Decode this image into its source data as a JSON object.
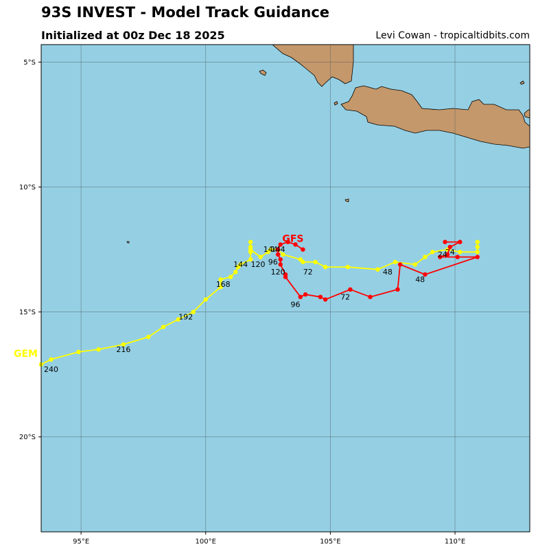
{
  "header": {
    "title": "93S INVEST - Model Track Guidance",
    "subtitle": "Initialized at 00z Dec 18 2025",
    "credit": "Levi Cowan - tropicaltidbits.com"
  },
  "map": {
    "lon_range": [
      93.4,
      113.0
    ],
    "lat_range": [
      -23.8,
      -4.3
    ],
    "ocean_color": "#95cfe3",
    "land_color": "#c4986b",
    "grid_color": "#4a5a60"
  },
  "axes": {
    "lat_ticks": [
      {
        "value": -5,
        "label": "5°S"
      },
      {
        "value": -10,
        "label": "10°S"
      },
      {
        "value": -15,
        "label": "15°S"
      },
      {
        "value": -20,
        "label": "20°S"
      }
    ],
    "lon_ticks": [
      {
        "value": 95,
        "label": "95°E"
      },
      {
        "value": 100,
        "label": "100°E"
      },
      {
        "value": 105,
        "label": "105°E"
      },
      {
        "value": 110,
        "label": "110°E"
      }
    ]
  },
  "chart_data": {
    "type": "scatter",
    "tracks": [
      {
        "name": "GEM",
        "color": "#ffff00",
        "label_position": [
          93.4,
          -16.8
        ],
        "points": [
          [
            110.9,
            -12.2
          ],
          [
            110.9,
            -12.4
          ],
          [
            110.9,
            -12.6
          ],
          [
            110.2,
            -12.6
          ],
          [
            109.7,
            -12.5
          ],
          [
            109.1,
            -12.6
          ],
          [
            108.8,
            -12.8
          ],
          [
            108.4,
            -13.1
          ],
          [
            107.6,
            -13.0
          ],
          [
            106.9,
            -13.3
          ],
          [
            105.7,
            -13.2
          ],
          [
            104.8,
            -13.2
          ],
          [
            104.4,
            -13.0
          ],
          [
            103.9,
            -13.0
          ],
          [
            103.8,
            -12.9
          ],
          [
            103.1,
            -12.7
          ],
          [
            102.9,
            -12.5
          ],
          [
            102.6,
            -12.5
          ],
          [
            102.5,
            -12.6
          ],
          [
            102.2,
            -12.8
          ],
          [
            101.8,
            -12.5
          ],
          [
            101.8,
            -12.4
          ],
          [
            101.8,
            -12.2
          ],
          [
            101.8,
            -12.6
          ],
          [
            101.8,
            -12.9
          ],
          [
            101.4,
            -13.1
          ],
          [
            101.3,
            -13.2
          ],
          [
            101.2,
            -13.4
          ],
          [
            101.0,
            -13.6
          ],
          [
            100.6,
            -13.7
          ],
          [
            100.6,
            -14.0
          ],
          [
            100.0,
            -14.5
          ],
          [
            99.5,
            -15.0
          ],
          [
            98.9,
            -15.3
          ],
          [
            98.3,
            -15.6
          ],
          [
            97.7,
            -16.0
          ],
          [
            96.7,
            -16.3
          ],
          [
            95.7,
            -16.5
          ],
          [
            94.9,
            -16.6
          ],
          [
            93.8,
            -16.9
          ],
          [
            93.4,
            -17.1
          ]
        ],
        "hour_labels": [
          {
            "text": "24",
            "lon": 109.8,
            "lat": -12.7
          },
          {
            "text": "48",
            "lon": 107.3,
            "lat": -13.5
          },
          {
            "text": "72",
            "lon": 104.1,
            "lat": -13.5
          },
          {
            "text": "96",
            "lon": 102.7,
            "lat": -13.1
          },
          {
            "text": "120",
            "lon": 102.1,
            "lat": -13.2
          },
          {
            "text": "144",
            "lon": 101.4,
            "lat": -13.2
          },
          {
            "text": "144",
            "lon": 102.6,
            "lat": -12.6
          },
          {
            "text": "168",
            "lon": 100.7,
            "lat": -14.0
          },
          {
            "text": "192",
            "lon": 99.2,
            "lat": -15.3
          },
          {
            "text": "216",
            "lon": 96.7,
            "lat": -16.6
          },
          {
            "text": "240",
            "lon": 93.8,
            "lat": -17.4
          }
        ]
      },
      {
        "name": "GFS",
        "color": "#ff0000",
        "label_position": [
          103.5,
          -12.2
        ],
        "points": [
          [
            109.6,
            -12.2
          ],
          [
            110.2,
            -12.2
          ],
          [
            109.8,
            -12.4
          ],
          [
            109.7,
            -12.7
          ],
          [
            109.4,
            -12.8
          ],
          [
            110.1,
            -12.8
          ],
          [
            110.9,
            -12.8
          ],
          [
            108.8,
            -13.5
          ],
          [
            107.8,
            -13.1
          ],
          [
            107.7,
            -14.1
          ],
          [
            106.6,
            -14.4
          ],
          [
            105.8,
            -14.1
          ],
          [
            104.8,
            -14.5
          ],
          [
            104.6,
            -14.4
          ],
          [
            104.0,
            -14.3
          ],
          [
            103.8,
            -14.4
          ],
          [
            103.2,
            -13.6
          ],
          [
            103.2,
            -13.5
          ],
          [
            103.0,
            -13.1
          ],
          [
            103.0,
            -12.9
          ],
          [
            102.9,
            -12.7
          ],
          [
            102.9,
            -12.5
          ],
          [
            103.0,
            -12.3
          ],
          [
            103.3,
            -12.2
          ],
          [
            103.6,
            -12.3
          ],
          [
            103.9,
            -12.5
          ]
        ],
        "hour_labels": [
          {
            "text": "24",
            "lon": 109.5,
            "lat": -12.8
          },
          {
            "text": "48",
            "lon": 108.6,
            "lat": -13.8
          },
          {
            "text": "72",
            "lon": 105.6,
            "lat": -14.5
          },
          {
            "text": "96",
            "lon": 103.6,
            "lat": -14.8
          },
          {
            "text": "120",
            "lon": 102.9,
            "lat": -13.5
          },
          {
            "text": "144",
            "lon": 102.9,
            "lat": -12.6
          }
        ]
      }
    ]
  }
}
